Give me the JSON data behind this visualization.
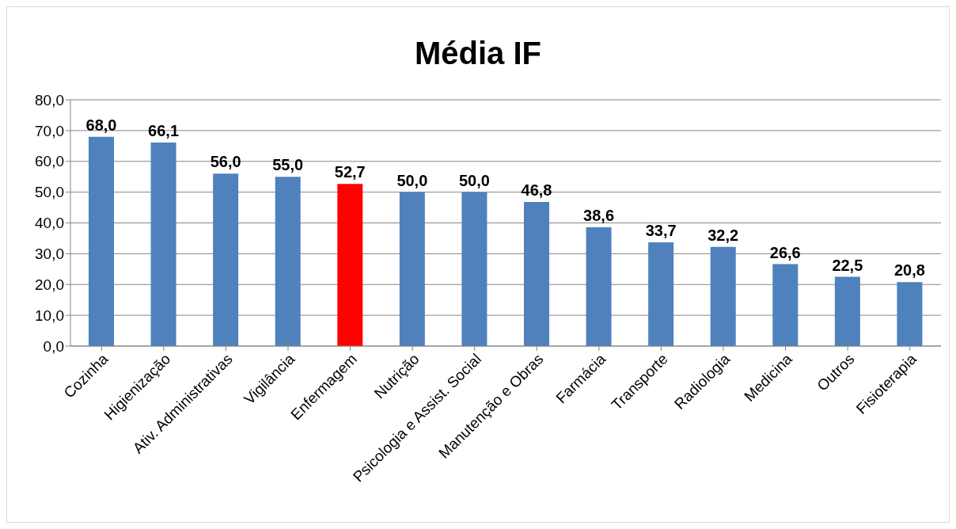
{
  "chart_data": {
    "type": "bar",
    "title": "Média IF",
    "categories": [
      "Cozinha",
      "Higienização",
      "Ativ. Administrativas",
      "Vigilância",
      "Enfermagem",
      "Nutrição",
      "Psicologia e Assist. Social",
      "Manutenção e Obras",
      "Farmácia",
      "Transporte",
      "Radiologia",
      "Medicina",
      "Outros",
      "Fisioterapia"
    ],
    "values": [
      68.0,
      66.1,
      56.0,
      55.0,
      52.7,
      50.0,
      50.0,
      46.8,
      38.6,
      33.7,
      32.2,
      26.6,
      22.5,
      20.8
    ],
    "value_labels": [
      "68,0",
      "66,1",
      "56,0",
      "55,0",
      "52,7",
      "50,0",
      "50,0",
      "46,8",
      "38,6",
      "33,7",
      "32,2",
      "26,6",
      "22,5",
      "20,8"
    ],
    "colors": [
      "#4f81bd",
      "#4f81bd",
      "#4f81bd",
      "#4f81bd",
      "#ff0000",
      "#4f81bd",
      "#4f81bd",
      "#4f81bd",
      "#4f81bd",
      "#4f81bd",
      "#4f81bd",
      "#4f81bd",
      "#4f81bd",
      "#4f81bd"
    ],
    "ylim": [
      0,
      80
    ],
    "yticks": [
      {
        "value": 0,
        "label": "0,0"
      },
      {
        "value": 10,
        "label": "10,0"
      },
      {
        "value": 20,
        "label": "20,0"
      },
      {
        "value": 30,
        "label": "30,0"
      },
      {
        "value": 40,
        "label": "40,0"
      },
      {
        "value": 50,
        "label": "50,0"
      },
      {
        "value": 60,
        "label": "60,0"
      },
      {
        "value": 70,
        "label": "70,0"
      },
      {
        "value": 80,
        "label": "80,0"
      }
    ],
    "grid": "y"
  }
}
